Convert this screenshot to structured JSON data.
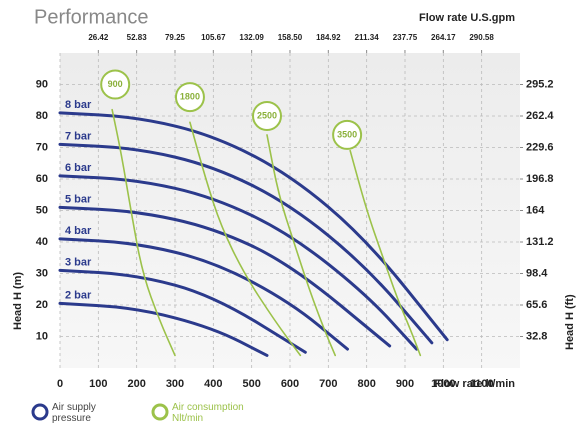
{
  "chart_data": {
    "type": "line",
    "title": "Performance",
    "x_label": "Flow rate  lt/min",
    "x2_label": "Flow rate U.S.gpm",
    "y_label": "Head H (m)",
    "y2_label": "Head H (ft)",
    "xlim": [
      0,
      1200
    ],
    "xticks": [
      0,
      100,
      200,
      300,
      400,
      500,
      600,
      700,
      800,
      900,
      1000,
      1100
    ],
    "x2lim": [
      0,
      317.04
    ],
    "x2ticks": [
      26.42,
      52.83,
      79.25,
      105.67,
      132.09,
      {
        "value": 158.5,
        "label": "158.50"
      },
      184.92,
      211.34,
      237.75,
      264.17,
      290.58
    ],
    "ylim": [
      0,
      100
    ],
    "yticks": [
      10,
      20,
      30,
      40,
      50,
      60,
      70,
      80,
      90
    ],
    "y2lim": [
      0,
      328
    ],
    "y2ticks": [
      32.8,
      65.6,
      98.4,
      131.2,
      164,
      196.8,
      229.6,
      262.4,
      295.2
    ],
    "grid": true,
    "legend": [
      {
        "label": "Air supply pressure",
        "color": "#2b3a8c"
      },
      {
        "label": "Air consumption Nlt/min",
        "color": "#9cc24a"
      }
    ],
    "series": [
      {
        "name": "8 bar",
        "group": 0,
        "color": "#2b3a8c",
        "x": [
          0,
          200,
          400,
          600,
          800,
          1010
        ],
        "values": [
          81,
          79.7,
          73.9,
          61.4,
          40.8,
          9
        ]
      },
      {
        "name": "7 bar",
        "group": 0,
        "color": "#2b3a8c",
        "x": [
          0,
          200,
          400,
          600,
          800,
          970
        ],
        "values": [
          71,
          69.8,
          64.1,
          52,
          32.1,
          8
        ]
      },
      {
        "name": "6 bar",
        "group": 0,
        "color": "#2b3a8c",
        "x": [
          0,
          200,
          400,
          600,
          800,
          930
        ],
        "values": [
          61,
          59.8,
          54.3,
          42.6,
          23.3,
          6
        ]
      },
      {
        "name": "5 bar",
        "group": 0,
        "color": "#2b3a8c",
        "x": [
          0,
          200,
          400,
          600,
          860
        ],
        "values": [
          51,
          49.8,
          44.5,
          33.1,
          7
        ]
      },
      {
        "name": "4 bar",
        "group": 0,
        "color": "#2b3a8c",
        "x": [
          0,
          200,
          400,
          600,
          750
        ],
        "values": [
          41,
          39.7,
          33.8,
          21,
          6
        ]
      },
      {
        "name": "3 bar",
        "group": 0,
        "color": "#2b3a8c",
        "x": [
          0,
          200,
          400,
          640
        ],
        "values": [
          31,
          29.6,
          23,
          5
        ]
      },
      {
        "name": "2 bar",
        "group": 0,
        "color": "#2b3a8c",
        "x": [
          0,
          200,
          400,
          540
        ],
        "values": [
          20.5,
          19.1,
          12.7,
          4
        ]
      },
      {
        "name": "900",
        "group": 1,
        "color": "#9cc24a",
        "label_at": [
          144,
          90
        ],
        "x": [
          136,
          160,
          185,
          215,
          260,
          300
        ],
        "values": [
          82,
          68,
          50,
          30,
          15,
          4
        ]
      },
      {
        "name": "1800",
        "group": 1,
        "color": "#9cc24a",
        "label_at": [
          339,
          86
        ],
        "x": [
          339,
          380,
          420,
          480,
          560,
          627
        ],
        "values": [
          78,
          60,
          45,
          30,
          15,
          4
        ]
      },
      {
        "name": "2500",
        "group": 1,
        "color": "#9cc24a",
        "label_at": [
          540,
          80
        ],
        "x": [
          540,
          570,
          610,
          650,
          690,
          718
        ],
        "values": [
          74,
          55,
          40,
          25,
          12,
          4
        ]
      },
      {
        "name": "3500",
        "group": 1,
        "color": "#9cc24a",
        "label_at": [
          749,
          74
        ],
        "x": [
          757,
          800,
          840,
          880,
          915,
          940
        ],
        "values": [
          69,
          50,
          36,
          22,
          12,
          4
        ]
      }
    ]
  }
}
